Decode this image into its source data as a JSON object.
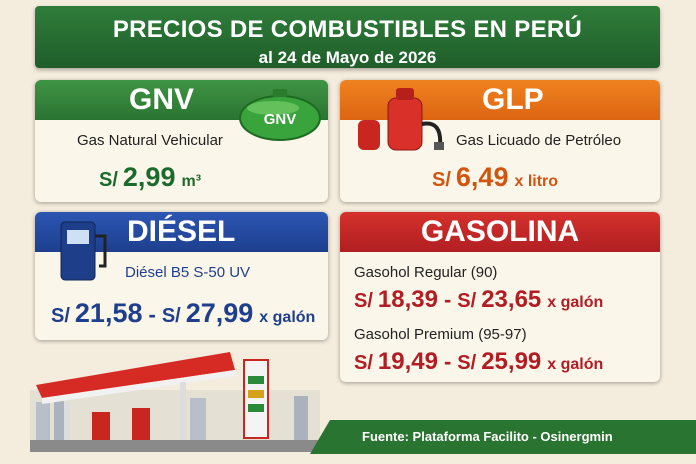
{
  "header": {
    "title": "PRECIOS DE COMBUSTIBLES EN PERÚ",
    "subtitle": "al 24 de Mayo de 2026"
  },
  "gnv": {
    "title": "GNV",
    "icon_label": "GNV",
    "name": "Gas Natural Vehicular",
    "currency": "S/",
    "price": "2,99",
    "unit": "m³"
  },
  "glp": {
    "title": "GLP",
    "name": "Gas Licuado de Petróleo",
    "currency": "S/",
    "price": "6,49",
    "unit": "x litro"
  },
  "diesel": {
    "title": "DIÉSEL",
    "name": "Diésel B5 S-50 UV",
    "from_currency": "S/",
    "from": "21,58",
    "separator": "-",
    "to_currency": "S/",
    "to": "27,99",
    "unit": "x galón"
  },
  "gasolina": {
    "title": "GASOLINA",
    "items": [
      {
        "name": "Gasohol Regular (90)",
        "from_currency": "S/",
        "from": "18,39",
        "separator": "-",
        "to_currency": "S/",
        "to": "23,65",
        "unit": "x galón"
      },
      {
        "name": "Gasohol Premium (95-97)",
        "from_currency": "S/",
        "from": "19,49",
        "separator": "-",
        "to_currency": "S/",
        "to": "25,99",
        "unit": "x galón"
      }
    ]
  },
  "footer": {
    "source": "Fuente: Plataforma Facilito - Osinergmin"
  }
}
